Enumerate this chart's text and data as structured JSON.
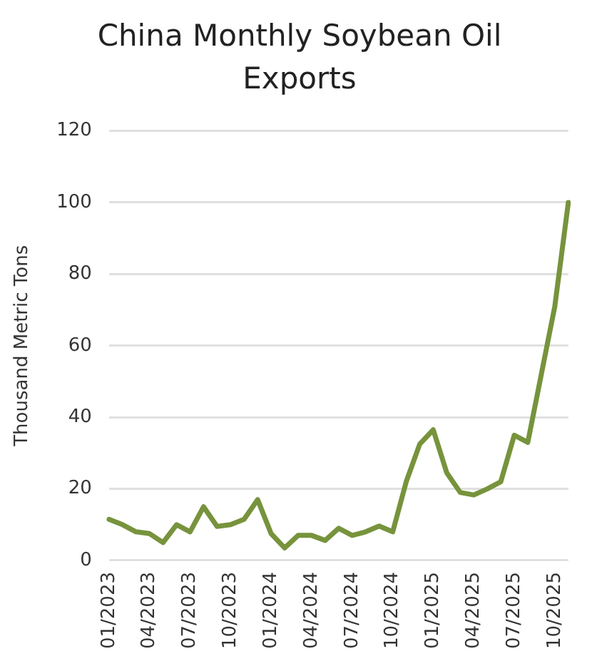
{
  "chart_data": {
    "type": "line",
    "title": "China Monthly Soybean Oil Exports",
    "ylabel": "Thousand Metric Tons",
    "categories": [
      "01/2023",
      null,
      null,
      "04/2023",
      null,
      null,
      "07/2023",
      null,
      null,
      "10/2023",
      null,
      null,
      "01/2024",
      null,
      null,
      "04/2024",
      null,
      null,
      "07/2024",
      null,
      null,
      "10/2024",
      null,
      null,
      "01/2025",
      null,
      null,
      "04/2025",
      null,
      null,
      "07/2025",
      null,
      null,
      "10/2025",
      null
    ],
    "series": [
      {
        "color": "#77933c",
        "values": [
          11.5,
          10,
          8,
          7.5,
          5,
          10,
          8,
          15,
          9.5,
          10,
          11.5,
          17,
          7.5,
          3.5,
          7,
          7,
          5.6,
          9,
          7,
          8,
          9.6,
          8,
          22,
          32.5,
          36.5,
          24.5,
          19,
          18.3,
          20,
          22,
          35,
          33,
          52,
          71,
          100
        ]
      }
    ],
    "ylim": [
      0,
      120
    ],
    "yticks": [
      0,
      20,
      40,
      60,
      80,
      100,
      120
    ],
    "grid": "y",
    "legend": false,
    "marker": "none",
    "line_style": "solid"
  }
}
